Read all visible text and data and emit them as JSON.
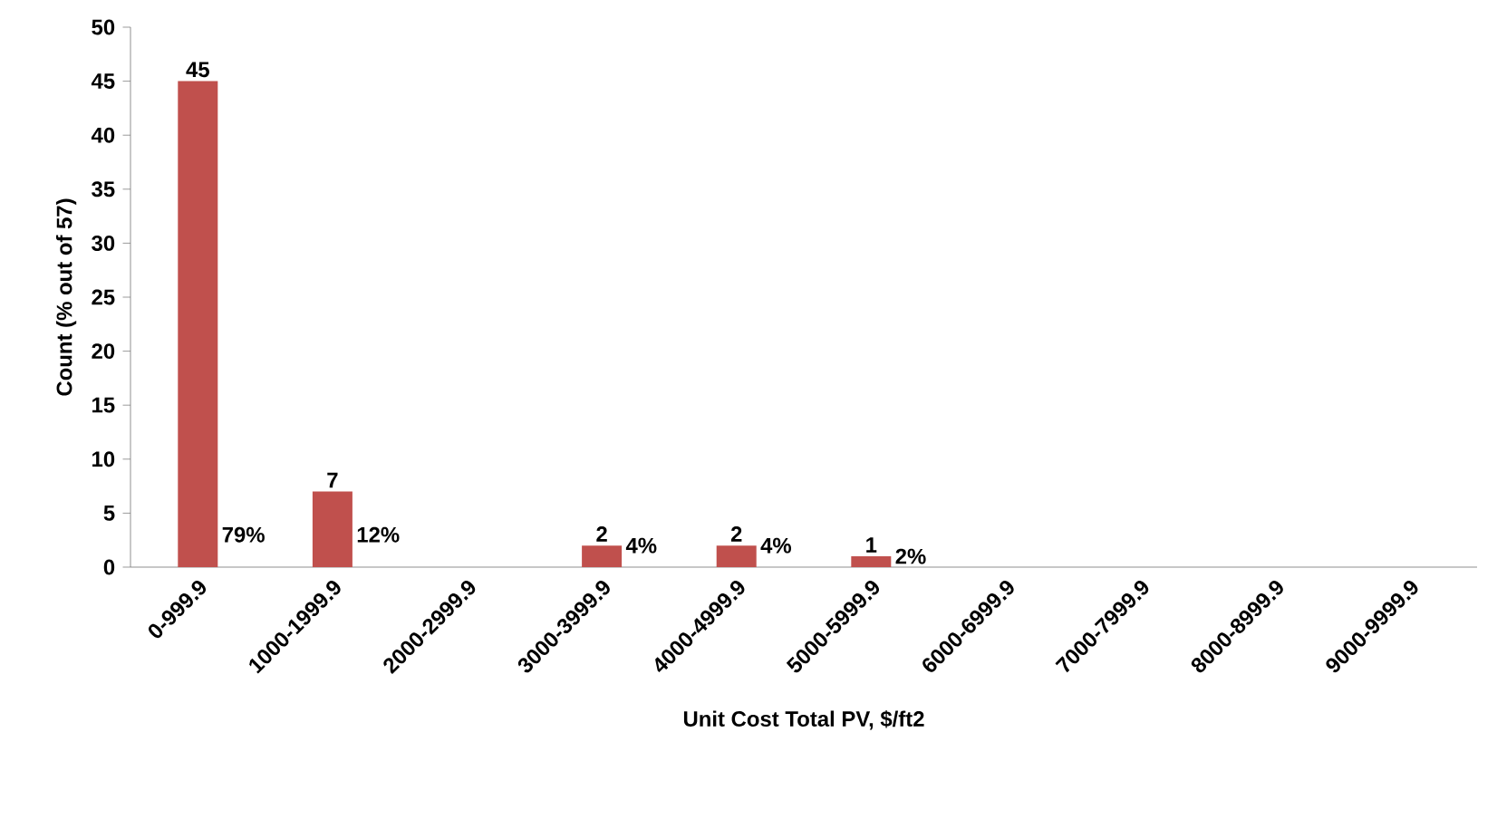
{
  "chart_data": {
    "type": "bar",
    "xlabel": "Unit Cost Total PV, $/ft2",
    "ylabel": "Count (% out of 57)",
    "categories": [
      "0-999.9",
      "1000-1999.9",
      "2000-2999.9",
      "3000-3999.9",
      "4000-4999.9",
      "5000-5999.9",
      "6000-6999.9",
      "7000-7999.9",
      "8000-8999.9",
      "9000-9999.9"
    ],
    "values": [
      45,
      7,
      0,
      2,
      2,
      1,
      0,
      0,
      0,
      0
    ],
    "value_labels": [
      "45",
      "7",
      null,
      "2",
      "2",
      "1",
      null,
      null,
      null,
      null
    ],
    "color": "#c0504d",
    "ylim": [
      0,
      50
    ],
    "yticks": [
      0,
      5,
      10,
      15,
      20,
      25,
      30,
      35,
      40,
      45,
      50
    ],
    "grid": false,
    "annotations": [
      "79%",
      "12%",
      "4%",
      "4%",
      "2%"
    ]
  }
}
